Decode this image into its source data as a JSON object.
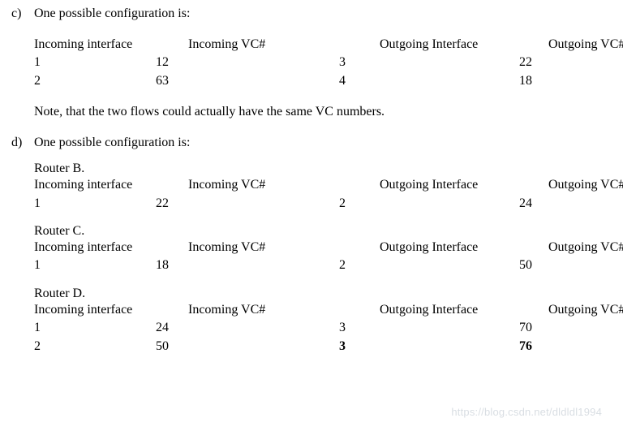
{
  "partC": {
    "letter": "c)",
    "intro": "One possible configuration is:",
    "headers": {
      "inIf": "Incoming interface",
      "inVc": "Incoming VC#",
      "outIf": "Outgoing Interface",
      "outVc": "Outgoing VC#"
    },
    "rows": [
      {
        "inIf": "1",
        "inVc": "12",
        "outIf": "3",
        "outVc": "22"
      },
      {
        "inIf": "2",
        "inVc": "63",
        "outIf": "4",
        "outVc": "18"
      }
    ],
    "note": "Note, that the two flows could actually have the same VC numbers."
  },
  "partD": {
    "letter": "d)",
    "intro": "One possible configuration is:",
    "headers": {
      "inIf": "Incoming interface",
      "inVc": "Incoming VC#",
      "outIf": "Outgoing Interface",
      "outVc": "Outgoing VC#"
    },
    "routers": [
      {
        "title": "Router B.",
        "rows": [
          {
            "inIf": "1",
            "inVc": "22",
            "outIf": "2",
            "outVc": "24"
          }
        ]
      },
      {
        "title": "Router C.",
        "rows": [
          {
            "inIf": "1",
            "inVc": "18",
            "outIf": "2",
            "outVc": "50"
          }
        ]
      },
      {
        "title": "Router D.",
        "rows": [
          {
            "inIf": "1",
            "inVc": "24",
            "outIf": "3",
            "outVc": "70",
            "bold": false
          },
          {
            "inIf": "2",
            "inVc": "50",
            "outIf": "3",
            "outVc": "76",
            "bold": true
          }
        ]
      }
    ]
  },
  "watermark": "https://blog.csdn.net/dldldl1994"
}
